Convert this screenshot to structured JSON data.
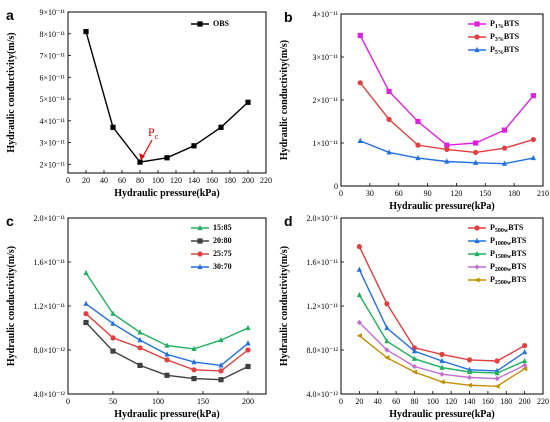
{
  "chart_data": [
    {
      "panel": "a",
      "type": "line",
      "xlabel": "Hydraulic pressure(kPa)",
      "ylabel": "Hydraulic conductivity(m/s)",
      "xlim": [
        0,
        220
      ],
      "ylim": [
        1.6e-11,
        9e-11
      ],
      "xticks": [
        0,
        20,
        40,
        60,
        80,
        100,
        120,
        140,
        160,
        180,
        200,
        220
      ],
      "yticks": [
        2e-11,
        3e-11,
        4e-11,
        5e-11,
        6e-11,
        7e-11,
        8e-11,
        9e-11
      ],
      "ytick_labels": [
        "2×10⁻¹¹",
        "3×10⁻¹¹",
        "4×10⁻¹¹",
        "5×10⁻¹¹",
        "6×10⁻¹¹",
        "7×10⁻¹¹",
        "8×10⁻¹¹",
        "9×10⁻¹¹"
      ],
      "legend_position": "top-right",
      "series": [
        {
          "name": "OBS",
          "color": "#000000",
          "marker": "square",
          "x": [
            20,
            50,
            80,
            110,
            140,
            170,
            200
          ],
          "y": [
            8.1e-11,
            3.7e-11,
            2.1e-11,
            2.3e-11,
            2.85e-11,
            3.7e-11,
            4.85e-11
          ]
        }
      ],
      "annotation": {
        "text": "P",
        "sub": "c",
        "x": 80,
        "y": 2.1e-11,
        "color": "#e00000"
      }
    },
    {
      "panel": "b",
      "type": "line",
      "xlabel": "Hydraulic pressure(kPa)",
      "ylabel": "Hydraulic conductivity(m/s)",
      "xlim": [
        0,
        210
      ],
      "ylim": [
        0,
        4e-11
      ],
      "xticks": [
        0,
        30,
        60,
        90,
        120,
        150,
        180,
        210
      ],
      "yticks": [
        0,
        1e-11,
        2e-11,
        3e-11,
        4e-11
      ],
      "ytick_labels": [
        "0",
        "1×10⁻¹¹",
        "2×10⁻¹¹",
        "3×10⁻¹¹",
        "4×10⁻¹¹"
      ],
      "legend_position": "top-right",
      "series": [
        {
          "name": "P",
          "sub": "1%",
          "suffix": "BTS",
          "color": "#e020e0",
          "marker": "square",
          "x": [
            20,
            50,
            80,
            110,
            140,
            170,
            200
          ],
          "y": [
            3.5e-11,
            2.2e-11,
            1.5e-11,
            9.5e-12,
            1e-11,
            1.3e-11,
            2.1e-11
          ]
        },
        {
          "name": "P",
          "sub": "3%",
          "suffix": "BTS",
          "color": "#e04040",
          "marker": "circle",
          "x": [
            20,
            50,
            80,
            110,
            140,
            170,
            200
          ],
          "y": [
            2.4e-11,
            1.55e-11,
            9.5e-12,
            8.5e-12,
            7.8e-12,
            8.8e-12,
            1.08e-11
          ]
        },
        {
          "name": "P",
          "sub": "5%",
          "suffix": "BTS",
          "color": "#2070e0",
          "marker": "triangle",
          "x": [
            20,
            50,
            80,
            110,
            140,
            170,
            200
          ],
          "y": [
            1.05e-11,
            7.8e-12,
            6.5e-12,
            5.7e-12,
            5.4e-12,
            5.2e-12,
            6.5e-12
          ]
        }
      ]
    },
    {
      "panel": "c",
      "type": "line",
      "xlabel": "Hydraulic pressure(kPa)",
      "ylabel": "Hydraulic conductivity(m/s)",
      "xlim": [
        0,
        220
      ],
      "ylim": [
        4e-12,
        2e-11
      ],
      "xticks": [
        0,
        50,
        100,
        150,
        200
      ],
      "yticks": [
        4e-12,
        8e-12,
        1.2e-11,
        1.6e-11,
        2e-11
      ],
      "ytick_labels": [
        "4.0×10⁻¹²",
        "8.0×10⁻¹²",
        "1.2×10⁻¹¹",
        "1.6×10⁻¹¹",
        "2.0×10⁻¹¹"
      ],
      "legend_position": "top-right",
      "series": [
        {
          "name": "15:85",
          "color": "#20b060",
          "marker": "triangle",
          "x": [
            20,
            50,
            80,
            110,
            140,
            170,
            200
          ],
          "y": [
            1.5e-11,
            1.13e-11,
            9.6e-12,
            8.4e-12,
            8.1e-12,
            8.9e-12,
            1e-11
          ]
        },
        {
          "name": "20:80",
          "color": "#404040",
          "marker": "square",
          "x": [
            20,
            50,
            80,
            110,
            140,
            170,
            200
          ],
          "y": [
            1.05e-11,
            7.9e-12,
            6.6e-12,
            5.7e-12,
            5.4e-12,
            5.3e-12,
            6.5e-12
          ]
        },
        {
          "name": "25:75",
          "color": "#e04040",
          "marker": "circle",
          "x": [
            20,
            50,
            80,
            110,
            140,
            170,
            200
          ],
          "y": [
            1.13e-11,
            9.1e-12,
            8.2e-12,
            7.1e-12,
            6.2e-12,
            6.1e-12,
            8e-12
          ]
        },
        {
          "name": "30:70",
          "color": "#2070e0",
          "marker": "triangle",
          "x": [
            20,
            50,
            80,
            110,
            140,
            170,
            200
          ],
          "y": [
            1.22e-11,
            1.04e-11,
            8.9e-12,
            7.6e-12,
            6.9e-12,
            6.6e-12,
            8.6e-12
          ]
        }
      ]
    },
    {
      "panel": "d",
      "type": "line",
      "xlabel": "Hydraulic pressure(kPa)",
      "ylabel": "Hydraulic conductivity(m/s)",
      "xlim": [
        0,
        220
      ],
      "ylim": [
        4e-12,
        2e-11
      ],
      "xticks": [
        0,
        20,
        40,
        60,
        80,
        100,
        120,
        140,
        160,
        180,
        200,
        220
      ],
      "yticks": [
        4e-12,
        8e-12,
        1.2e-11,
        1.6e-11,
        2e-11
      ],
      "ytick_labels": [
        "4.0×10⁻¹²",
        "8.0×10⁻¹²",
        "1.2×10⁻¹¹",
        "1.6×10⁻¹¹",
        "2.0×10⁻¹¹"
      ],
      "legend_position": "top-right",
      "series": [
        {
          "name": "P",
          "sub": "500w",
          "suffix": "BTS",
          "color": "#e04040",
          "marker": "circle",
          "x": [
            20,
            50,
            80,
            110,
            140,
            170,
            200
          ],
          "y": [
            1.74e-11,
            1.22e-11,
            8.2e-12,
            7.6e-12,
            7.1e-12,
            7e-12,
            8.4e-12
          ]
        },
        {
          "name": "P",
          "sub": "1000w",
          "suffix": "BTS",
          "color": "#2070e0",
          "marker": "triangle",
          "x": [
            20,
            50,
            80,
            110,
            140,
            170,
            200
          ],
          "y": [
            1.53e-11,
            1e-11,
            7.9e-12,
            7e-12,
            6.2e-12,
            6.1e-12,
            7.8e-12
          ]
        },
        {
          "name": "P",
          "sub": "1500w",
          "suffix": "BTS",
          "color": "#20b060",
          "marker": "triangle",
          "x": [
            20,
            50,
            80,
            110,
            140,
            170,
            200
          ],
          "y": [
            1.3e-11,
            8.8e-12,
            7.2e-12,
            6.4e-12,
            6e-12,
            5.9e-12,
            7e-12
          ]
        },
        {
          "name": "P",
          "sub": "2000w",
          "suffix": "BTS",
          "color": "#c070d0",
          "marker": "diamond",
          "x": [
            20,
            50,
            80,
            110,
            140,
            170,
            200
          ],
          "y": [
            1.05e-11,
            8e-12,
            6.5e-12,
            5.8e-12,
            5.5e-12,
            5.4e-12,
            6.6e-12
          ]
        },
        {
          "name": "P",
          "sub": "2500w",
          "suffix": "BTS",
          "color": "#c09000",
          "marker": "triangle-left",
          "x": [
            20,
            50,
            80,
            110,
            140,
            170,
            200
          ],
          "y": [
            9.3e-12,
            7.3e-12,
            6e-12,
            5.1e-12,
            4.8e-12,
            4.7e-12,
            6.3e-12
          ]
        }
      ]
    }
  ]
}
